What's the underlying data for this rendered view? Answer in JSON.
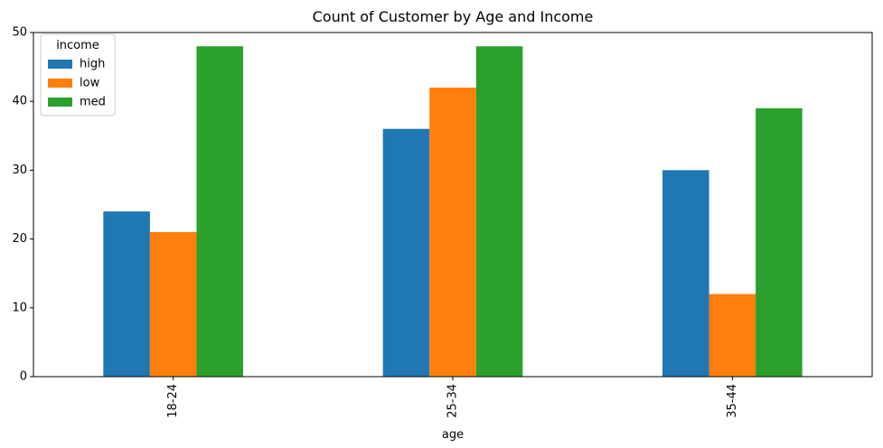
{
  "chart_data": {
    "type": "bar",
    "title": "Count of Customer by Age and Income",
    "xlabel": "age",
    "ylabel": "",
    "categories": [
      "18-24",
      "25-34",
      "35-44"
    ],
    "series": [
      {
        "name": "high",
        "color": "#1f77b4",
        "values": [
          24,
          36,
          30
        ]
      },
      {
        "name": "low",
        "color": "#ff7f0e",
        "values": [
          21,
          42,
          12
        ]
      },
      {
        "name": "med",
        "color": "#2ca02c",
        "values": [
          48,
          48,
          39
        ]
      }
    ],
    "ylim": [
      0,
      50
    ],
    "yticks": [
      0,
      10,
      20,
      30,
      40,
      50
    ],
    "legend": {
      "title": "income",
      "placement": "top-left"
    },
    "grid": false
  }
}
